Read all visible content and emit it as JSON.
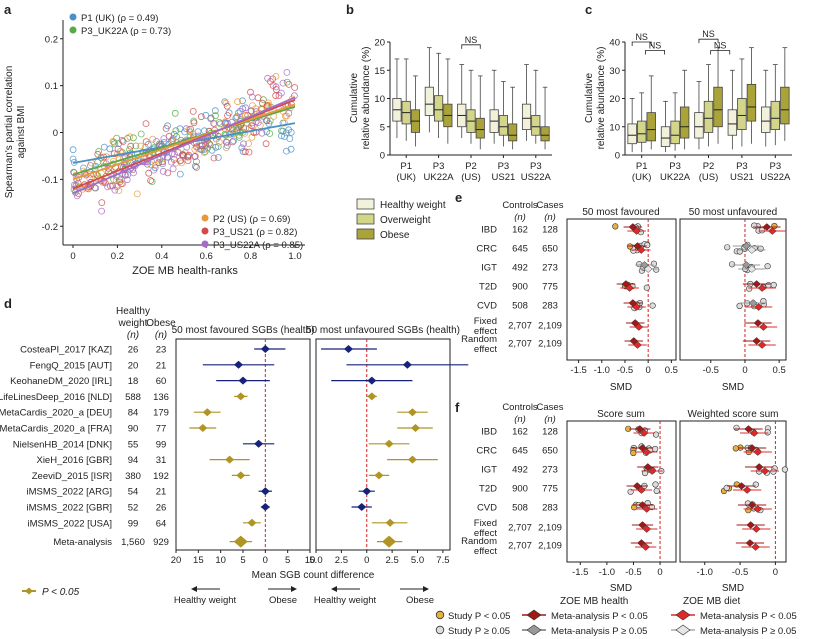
{
  "panel_labels": {
    "a": "a",
    "b": "b",
    "c": "c",
    "d": "d",
    "e": "e",
    "f": "f"
  },
  "chart_data": [
    {
      "panel": "a",
      "type": "scatter",
      "xlabel": "ZOE MB health-ranks",
      "ylabel_line1": "Spearman's partial correlation",
      "ylabel_line2": "against BMI",
      "xlim": [
        0,
        1
      ],
      "ylim": [
        -0.24,
        0.24
      ],
      "xticks": [
        "0",
        "0.2",
        "0.4",
        "0.6",
        "0.8",
        "1.0"
      ],
      "yticks": [
        "-0.2",
        "-0.1",
        "0",
        "0.1",
        "0.2"
      ],
      "legend_top": [
        {
          "label": "P1 (UK) (ρ = 0.49)",
          "color": "#4a90c8"
        },
        {
          "label": "P3_UK22A (ρ = 0.73)",
          "color": "#5aa84a"
        }
      ],
      "legend_bottom": [
        {
          "label": "P2 (US) (ρ = 0.69)",
          "color": "#e89a3a"
        },
        {
          "label": "P3_US21 (ρ = 0.82)",
          "color": "#d14b4b"
        },
        {
          "label": "P3_US22A (ρ = 0.85)",
          "color": "#a56bc8"
        }
      ],
      "series": [
        {
          "color": "#4a90c8",
          "fit": [
            [
              0.0,
              -0.065
            ],
            [
              1.0,
              0.02
            ]
          ]
        },
        {
          "color": "#5aa84a",
          "fit": [
            [
              0.0,
              -0.09
            ],
            [
              1.0,
              0.055
            ]
          ]
        },
        {
          "color": "#e89a3a",
          "fit": [
            [
              0.0,
              -0.1
            ],
            [
              1.0,
              0.06
            ]
          ]
        },
        {
          "color": "#d14b4b",
          "fit": [
            [
              0.0,
              -0.12
            ],
            [
              1.0,
              0.07
            ]
          ]
        },
        {
          "color": "#a56bc8",
          "fit": [
            [
              0.0,
              -0.13
            ],
            [
              1.0,
              0.075
            ]
          ]
        }
      ]
    },
    {
      "panel": "b",
      "type": "box",
      "ylabel_line1": "Cumulative",
      "ylabel_line2": "relative abundance (%)",
      "ylim": [
        0,
        20
      ],
      "yticks": [
        "0",
        "5",
        "10",
        "15",
        "20"
      ],
      "categories": [
        "P1\n(UK)",
        "P3\nUK22A",
        "P2\n(US)",
        "P3\nUS21",
        "P3\nUS22A"
      ],
      "annotations": [
        {
          "text": "NS",
          "group": 2,
          "y": 19.5
        }
      ],
      "legend": [
        {
          "label": "Healthy weight",
          "color": "#f2f2dc"
        },
        {
          "label": "Overweight",
          "color": "#d3d68a"
        },
        {
          "label": "Obese",
          "color": "#a9a33a"
        }
      ],
      "boxes": [
        [
          [
            3,
            6,
            8,
            10,
            17
          ],
          [
            2.5,
            5.5,
            7.5,
            9.5,
            17
          ],
          [
            1.5,
            4,
            6,
            8,
            14
          ]
        ],
        [
          [
            4,
            7,
            9,
            12,
            19
          ],
          [
            3,
            6,
            8,
            10.5,
            18
          ],
          [
            2,
            5,
            7,
            9,
            17
          ]
        ],
        [
          [
            3,
            5,
            7,
            9,
            16
          ],
          [
            2,
            4,
            6,
            8,
            15
          ],
          [
            1,
            3,
            4.5,
            6.5,
            14
          ]
        ],
        [
          [
            2,
            4,
            6,
            8,
            15
          ],
          [
            1.5,
            3.5,
            5,
            7,
            13
          ],
          [
            1,
            2.5,
            3.5,
            5.5,
            12
          ]
        ],
        [
          [
            2.5,
            4.5,
            6.5,
            9,
            16
          ],
          [
            2,
            3.5,
            5,
            7,
            15
          ],
          [
            1,
            2.5,
            3.5,
            5,
            12
          ]
        ]
      ]
    },
    {
      "panel": "c",
      "type": "box",
      "ylabel_line1": "Cumulative",
      "ylabel_line2": "relative abundance (%)",
      "ylim": [
        0,
        40
      ],
      "yticks": [
        "0",
        "10",
        "20",
        "30",
        "40"
      ],
      "categories": [
        "P1\n(UK)",
        "P3\nUK22A",
        "P2\n(US)",
        "P3\nUS21",
        "P3\nUS22A"
      ],
      "annotations": [
        {
          "text": "NS",
          "group": 0,
          "y": 40
        },
        {
          "text": "NS",
          "group": 0.4,
          "y": 37
        },
        {
          "text": "NS",
          "group": 2,
          "y": 41
        },
        {
          "text": "NS",
          "group": 2.35,
          "y": 37
        }
      ],
      "boxes": [
        [
          [
            1,
            4,
            7,
            11,
            20
          ],
          [
            1,
            4.5,
            7.5,
            12,
            22
          ],
          [
            2,
            5,
            9,
            15,
            28
          ]
        ],
        [
          [
            1,
            3,
            6,
            10,
            19
          ],
          [
            1.5,
            4,
            7,
            12,
            22
          ],
          [
            2,
            6,
            10,
            17,
            30
          ]
        ],
        [
          [
            2,
            6,
            10,
            15,
            26
          ],
          [
            3,
            8,
            13,
            19,
            32
          ],
          [
            4,
            10,
            16,
            24,
            38
          ]
        ],
        [
          [
            2,
            7,
            11,
            16,
            30
          ],
          [
            3,
            9,
            14,
            20,
            34
          ],
          [
            4,
            12,
            17,
            25,
            38
          ]
        ],
        [
          [
            3,
            8,
            12,
            17,
            30
          ],
          [
            3.5,
            9,
            13,
            19,
            32
          ],
          [
            5,
            11,
            16,
            24,
            38
          ]
        ]
      ]
    },
    {
      "panel": "d",
      "type": "forest",
      "col_healthy": [
        "Healthy",
        "weight",
        "(n)"
      ],
      "col_obese": [
        "Obese",
        "(n)"
      ],
      "left_title": "50 most favoured SGBs (health)",
      "right_title": "50 most unfavoured SGBs (health)",
      "xlabel": "Mean SGB count difference",
      "left_xticks": [
        "20",
        "15",
        "10",
        "5",
        "0",
        "5",
        "10"
      ],
      "right_xticks": [
        "5.0",
        "2.5",
        "0",
        "2.5",
        "5.0",
        "7.5"
      ],
      "arrow_left": "Healthy weight",
      "arrow_right": "Obese",
      "legend_label": "P < 0.05",
      "rows": [
        {
          "study": "CosteaPI_2017 [KAZ]",
          "healthy_n": "26",
          "obese_n": "23",
          "left": [
            0,
            -2.5,
            4.5,
            false
          ],
          "right": [
            -1.8,
            -4.5,
            1,
            false
          ]
        },
        {
          "study": "FengQ_2015 [AUT]",
          "healthy_n": "20",
          "obese_n": "21",
          "left": [
            -6,
            -14,
            2,
            false
          ],
          "right": [
            4,
            -2,
            10,
            false
          ]
        },
        {
          "study": "KeohaneDM_2020 [IRL]",
          "healthy_n": "18",
          "obese_n": "60",
          "left": [
            -5,
            -11,
            1,
            false
          ],
          "right": [
            0.5,
            -3.5,
            4.5,
            false
          ]
        },
        {
          "study": "LifeLinesDeep_2016 [NLD]",
          "healthy_n": "588",
          "obese_n": "136",
          "left": [
            -5.5,
            -7,
            -4,
            true
          ],
          "right": [
            0.5,
            0,
            1,
            true
          ]
        },
        {
          "study": "MetaCardis_2020_a [DEU]",
          "healthy_n": "84",
          "obese_n": "179",
          "left": [
            -13,
            -16,
            -10,
            true
          ],
          "right": [
            4.5,
            3,
            6,
            true
          ]
        },
        {
          "study": "MetaCardis_2020_a [FRA]",
          "healthy_n": "90",
          "obese_n": "77",
          "left": [
            -14,
            -17,
            -11,
            true
          ],
          "right": [
            4.8,
            3,
            6.5,
            true
          ]
        },
        {
          "study": "NielsenHB_2014 [DNK]",
          "healthy_n": "55",
          "obese_n": "99",
          "left": [
            -1.5,
            -5,
            2,
            false
          ],
          "right": [
            2.2,
            0.2,
            4.2,
            true
          ]
        },
        {
          "study": "XieH_2016 [GBR]",
          "healthy_n": "94",
          "obese_n": "31",
          "left": [
            -8,
            -12.5,
            -3.5,
            true
          ],
          "right": [
            4.5,
            2,
            7,
            true
          ]
        },
        {
          "study": "ZeeviD_2015 [ISR]",
          "healthy_n": "380",
          "obese_n": "192",
          "left": [
            -5.5,
            -7.5,
            -3.5,
            true
          ],
          "right": [
            1.2,
            0.2,
            2.2,
            true
          ]
        },
        {
          "study": "iMSMS_2022 [ARG]",
          "healthy_n": "54",
          "obese_n": "21",
          "left": [
            0,
            -1.5,
            1.5,
            false
          ],
          "right": [
            0,
            -0.8,
            0.8,
            false
          ]
        },
        {
          "study": "iMSMS_2022 [GBR]",
          "healthy_n": "52",
          "obese_n": "26",
          "left": [
            0,
            -1,
            1,
            false
          ],
          "right": [
            -0.5,
            -1.5,
            0.5,
            false
          ]
        },
        {
          "study": "iMSMS_2022 [USA]",
          "healthy_n": "99",
          "obese_n": "64",
          "left": [
            -3,
            -5,
            -1,
            true
          ],
          "right": [
            2.3,
            0.5,
            4,
            true
          ]
        },
        {
          "study": "Meta-analysis",
          "healthy_n": "1,560",
          "obese_n": "929",
          "left": [
            -5.5,
            -8,
            -3,
            true
          ],
          "right": [
            2.2,
            1,
            3.5,
            true
          ]
        }
      ]
    },
    {
      "panel": "e",
      "type": "forest",
      "col_controls": [
        "Controls",
        "(n)"
      ],
      "col_cases": [
        "Cases",
        "(n)"
      ],
      "left_title": "50 most favoured",
      "right_title": "50 most unfavoured",
      "xlabel": "SMD",
      "left_xticks": [
        "-1.5",
        "-1.0",
        "-0.5",
        "0",
        "0.5"
      ],
      "right_xticks": [
        "-0.5",
        "0",
        "0.5"
      ],
      "rows": [
        {
          "label": "IBD",
          "controls": "162",
          "cases": "128"
        },
        {
          "label": "CRC",
          "controls": "645",
          "cases": "650"
        },
        {
          "label": "IGT",
          "controls": "492",
          "cases": "273"
        },
        {
          "label": "T2D",
          "controls": "900",
          "cases": "775"
        },
        {
          "label": "CVD",
          "controls": "508",
          "cases": "283"
        },
        {
          "label": "Fixed effect",
          "controls": "2,707",
          "cases": "2,109"
        },
        {
          "label": "Random effect",
          "controls": "2,707",
          "cases": "2,109"
        }
      ],
      "left_means": [
        -0.3,
        -0.2,
        -0.05,
        -0.45,
        -0.3,
        -0.25,
        -0.28
      ],
      "right_means": [
        0.35,
        0.05,
        0.05,
        0.2,
        0.15,
        0.22,
        0.2
      ]
    },
    {
      "panel": "f",
      "type": "forest",
      "col_controls": [
        "Controls",
        "(n)"
      ],
      "col_cases": [
        "Cases",
        "(n)"
      ],
      "left_title": "Score sum",
      "right_title": "Weighted score sum",
      "xlabel": "SMD",
      "left_xticks": [
        "-1.5",
        "-1.0",
        "-0.5",
        "0"
      ],
      "right_xticks": [
        "-1.0",
        "-0.5",
        "0"
      ],
      "rows": [
        {
          "label": "IBD",
          "controls": "162",
          "cases": "128"
        },
        {
          "label": "CRC",
          "controls": "645",
          "cases": "650"
        },
        {
          "label": "IGT",
          "controls": "492",
          "cases": "273"
        },
        {
          "label": "T2D",
          "controls": "900",
          "cases": "775"
        },
        {
          "label": "CVD",
          "controls": "508",
          "cases": "283"
        },
        {
          "label": "Fixed effect",
          "controls": "2,707",
          "cases": "2,109"
        },
        {
          "label": "Random effect",
          "controls": "2,707",
          "cases": "2,109"
        }
      ],
      "left_means": [
        -0.35,
        -0.3,
        -0.2,
        -0.4,
        -0.3,
        -0.3,
        -0.32
      ],
      "right_means": [
        -0.35,
        -0.3,
        -0.2,
        -0.45,
        -0.3,
        -0.32,
        -0.33
      ]
    }
  ],
  "bottom_legend": {
    "health_title": "ZOE MB health",
    "diet_title": "ZOE MB diet",
    "study_sig": "Study P < 0.05",
    "study_ns": "Study P ≥ 0.05",
    "meta_sig": "Meta-analysis P < 0.05",
    "meta_ns": "Meta-analysis P ≥ 0.05"
  }
}
